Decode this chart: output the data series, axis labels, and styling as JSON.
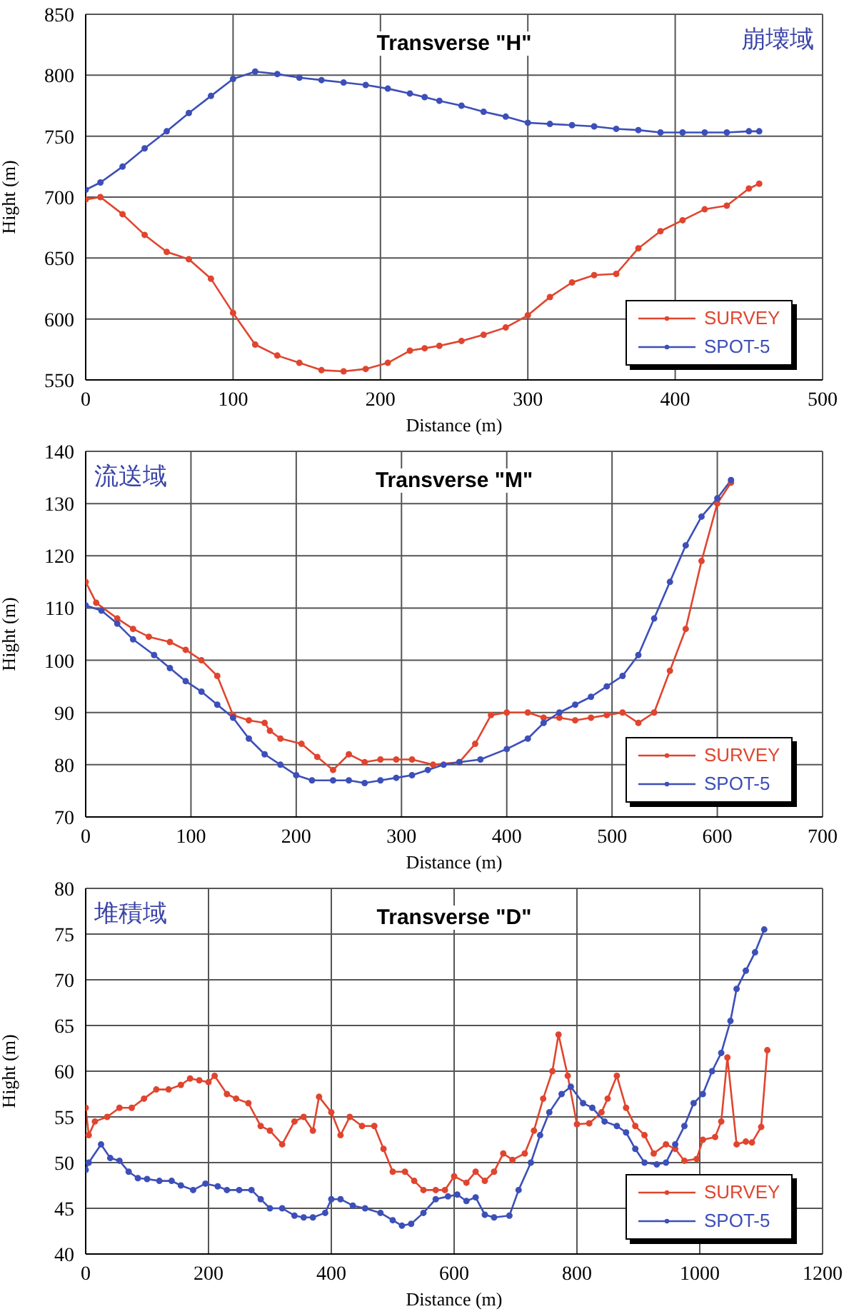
{
  "chart_data": [
    {
      "type": "line",
      "title": "Transverse \"H\"",
      "xlabel": "Distance (m)",
      "ylabel": "Hight (m)",
      "annotations": [
        "崩壊域"
      ],
      "xlim": [
        0,
        500
      ],
      "xticks": [
        0,
        100,
        200,
        300,
        400,
        500
      ],
      "ylim": [
        550,
        850
      ],
      "yticks": [
        550,
        600,
        650,
        700,
        750,
        800,
        850
      ],
      "grid": true,
      "legend": "bottom right",
      "marker": "circle",
      "series": [
        {
          "name": "SURVEY",
          "color": "#e0452f",
          "x": [
            0,
            10,
            25,
            40,
            55,
            70,
            85,
            100,
            115,
            130,
            145,
            160,
            175,
            190,
            205,
            220,
            230,
            240,
            255,
            270,
            285,
            300,
            315,
            330,
            345,
            360,
            375,
            390,
            405,
            420,
            435,
            450,
            457
          ],
          "values": [
            698,
            700,
            686,
            669,
            655,
            649,
            633,
            605,
            579,
            570,
            564,
            558,
            557,
            559,
            564,
            574,
            576,
            578,
            582,
            587,
            593,
            603,
            618,
            630,
            636,
            637,
            658,
            672,
            681,
            690,
            693,
            707,
            711
          ]
        },
        {
          "name": "SPOT-5",
          "color": "#3d4fb8",
          "x": [
            0,
            10,
            25,
            40,
            55,
            70,
            85,
            100,
            115,
            130,
            145,
            160,
            175,
            190,
            205,
            220,
            230,
            240,
            255,
            270,
            285,
            300,
            315,
            330,
            345,
            360,
            375,
            390,
            405,
            420,
            435,
            450,
            457
          ],
          "values": [
            706,
            712,
            725,
            740,
            754,
            769,
            783,
            797,
            803,
            801,
            798,
            796,
            794,
            792,
            789,
            785,
            782,
            779,
            775,
            770,
            766,
            761,
            760,
            759,
            758,
            756,
            755,
            753,
            753,
            753,
            753,
            754,
            754
          ]
        }
      ]
    },
    {
      "type": "line",
      "title": "Transverse \"M\"",
      "xlabel": "Distance (m)",
      "ylabel": "Hight (m)",
      "annotations": [
        "流送域"
      ],
      "xlim": [
        0,
        700
      ],
      "xticks": [
        0,
        100,
        200,
        300,
        400,
        500,
        600,
        700
      ],
      "ylim": [
        70,
        140
      ],
      "yticks": [
        70,
        80,
        90,
        100,
        110,
        120,
        130,
        140
      ],
      "grid": true,
      "legend": "bottom right",
      "marker": "circle",
      "series": [
        {
          "name": "SURVEY",
          "color": "#e0452f",
          "x": [
            0,
            10,
            30,
            45,
            60,
            80,
            95,
            110,
            125,
            140,
            155,
            170,
            175,
            185,
            205,
            220,
            235,
            250,
            265,
            280,
            295,
            310,
            330,
            355,
            370,
            385,
            400,
            420,
            435,
            450,
            465,
            480,
            495,
            510,
            525,
            540,
            555,
            570,
            585,
            600,
            613
          ],
          "values": [
            115,
            111,
            108,
            106,
            104.5,
            103.5,
            102,
            100,
            97,
            89.5,
            88.5,
            88,
            86.5,
            85,
            84,
            81.5,
            79,
            82,
            80.5,
            81,
            81,
            81,
            80,
            80.5,
            84,
            89.5,
            90,
            90,
            89,
            89,
            88.5,
            89,
            89.5,
            90,
            88,
            90,
            98,
            106,
            119,
            130,
            134
          ]
        },
        {
          "name": "SPOT-5",
          "color": "#3d4fb8",
          "x": [
            0,
            15,
            30,
            45,
            65,
            80,
            95,
            110,
            125,
            140,
            155,
            170,
            185,
            200,
            215,
            235,
            250,
            265,
            280,
            295,
            310,
            325,
            340,
            355,
            375,
            400,
            420,
            435,
            450,
            465,
            480,
            495,
            510,
            525,
            540,
            555,
            570,
            585,
            600,
            613
          ],
          "values": [
            110.5,
            109.5,
            107,
            104,
            101,
            98.5,
            96,
            94,
            91.5,
            89,
            85,
            82,
            80,
            78,
            77,
            77,
            77,
            76.5,
            77,
            77.5,
            78,
            79,
            80,
            80.5,
            81,
            83,
            85,
            88,
            90,
            91.5,
            93,
            95,
            97,
            101,
            108,
            115,
            122,
            127.5,
            131,
            134.5
          ]
        }
      ]
    },
    {
      "type": "line",
      "title": "Transverse \"D\"",
      "xlabel": "Distance (m)",
      "ylabel": "Hight (m)",
      "annotations": [
        "堆積域"
      ],
      "xlim": [
        0,
        1200
      ],
      "xticks": [
        0,
        200,
        400,
        600,
        800,
        1000,
        1200
      ],
      "ylim": [
        40,
        80
      ],
      "yticks": [
        40,
        45,
        50,
        55,
        60,
        65,
        70,
        75,
        80
      ],
      "grid": true,
      "legend": "bottom right",
      "marker": "circle",
      "series": [
        {
          "name": "SURVEY",
          "color": "#e0452f",
          "x": [
            0,
            5,
            15,
            35,
            55,
            75,
            95,
            115,
            135,
            155,
            170,
            185,
            200,
            210,
            230,
            245,
            265,
            285,
            300,
            320,
            340,
            355,
            370,
            380,
            400,
            415,
            430,
            450,
            470,
            485,
            500,
            520,
            535,
            550,
            570,
            585,
            600,
            620,
            635,
            650,
            665,
            680,
            695,
            715,
            730,
            745,
            760,
            770,
            785,
            800,
            820,
            840,
            850,
            865,
            880,
            895,
            910,
            925,
            945,
            960,
            975,
            995,
            1005,
            1025,
            1035,
            1045,
            1060,
            1075,
            1085,
            1100,
            1110
          ],
          "values": [
            56,
            53,
            54.5,
            55,
            56,
            56,
            57,
            58,
            58,
            58.5,
            59.2,
            59,
            58.8,
            59.5,
            57.5,
            57,
            56.5,
            54,
            53.5,
            52,
            54.5,
            55,
            53.5,
            57.2,
            55.5,
            53,
            55,
            54,
            54,
            51.5,
            49,
            49,
            48,
            47,
            47,
            47,
            48.5,
            47.8,
            49,
            48,
            49,
            51,
            50.3,
            51,
            53.5,
            57,
            60,
            64,
            59.5,
            54.2,
            54.3,
            55.5,
            57,
            59.5,
            56,
            54,
            53,
            51,
            52,
            51.5,
            50.2,
            50.4,
            52.5,
            52.8,
            54.5,
            61.5,
            52,
            52.3,
            52.2,
            53.9,
            62.3
          ]
        },
        {
          "name": "SPOT-5",
          "color": "#3d4fb8",
          "x": [
            0,
            5,
            25,
            40,
            55,
            70,
            85,
            100,
            120,
            140,
            155,
            175,
            195,
            215,
            230,
            250,
            270,
            285,
            300,
            320,
            340,
            355,
            370,
            390,
            400,
            415,
            435,
            455,
            480,
            500,
            515,
            530,
            550,
            570,
            590,
            605,
            620,
            635,
            650,
            665,
            690,
            705,
            725,
            740,
            755,
            775,
            790,
            810,
            825,
            845,
            865,
            880,
            895,
            910,
            930,
            945,
            960,
            975,
            990,
            1005,
            1020,
            1035,
            1050,
            1060,
            1075,
            1090,
            1105
          ],
          "values": [
            49.2,
            50,
            52,
            50.5,
            50.2,
            49,
            48.3,
            48.2,
            48,
            48,
            47.5,
            47,
            47.7,
            47.4,
            47,
            47,
            47,
            46,
            45,
            45,
            44.2,
            44,
            44,
            44.5,
            46,
            46,
            45.3,
            45,
            44.5,
            43.7,
            43.1,
            43.3,
            44.5,
            46,
            46.3,
            46.5,
            45.8,
            46.2,
            44.3,
            44,
            44.2,
            47,
            50,
            53,
            55.5,
            57.5,
            58.3,
            56.5,
            56,
            54.5,
            54,
            53.3,
            51.5,
            50,
            49.8,
            50,
            52,
            54,
            56.5,
            57.5,
            60,
            62,
            65.5,
            69,
            71,
            73,
            75.5
          ]
        }
      ]
    }
  ]
}
